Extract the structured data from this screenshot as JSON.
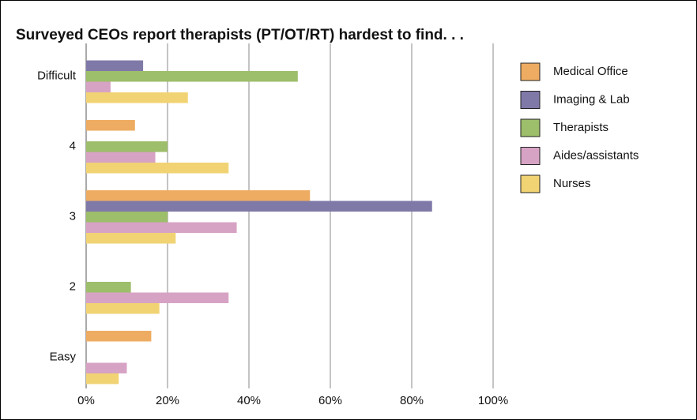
{
  "chart_data": {
    "type": "hbar",
    "title": "Surveyed CEOs report therapists (PT/OT/RT) hardest to find. . .",
    "categories": [
      "Difficult",
      "4",
      "3",
      "2",
      "Easy"
    ],
    "series": [
      {
        "name": "Medical Office",
        "color": "#eeac62",
        "values": [
          0,
          12,
          55,
          0,
          16
        ]
      },
      {
        "name": "Imaging & Lab",
        "color": "#7f79a8",
        "values": [
          14,
          0,
          85,
          0,
          0
        ]
      },
      {
        "name": "Therapists",
        "color": "#9dbe6a",
        "values": [
          52,
          20,
          20,
          11,
          0
        ]
      },
      {
        "name": "Aides/assistants",
        "color": "#d7a3c4",
        "values": [
          6,
          17,
          37,
          35,
          10
        ]
      },
      {
        "name": "Nurses",
        "color": "#f1d374",
        "values": [
          25,
          35,
          22,
          18,
          8
        ]
      }
    ],
    "xlim": [
      0,
      100
    ],
    "xticks": [
      {
        "value": 0,
        "label": "0%"
      },
      {
        "value": 20,
        "label": "20%"
      },
      {
        "value": 40,
        "label": "40%"
      },
      {
        "value": 60,
        "label": "60%"
      },
      {
        "value": 80,
        "label": "80%"
      },
      {
        "value": 100,
        "label": "100%"
      }
    ],
    "grid": true,
    "legend": "right"
  }
}
